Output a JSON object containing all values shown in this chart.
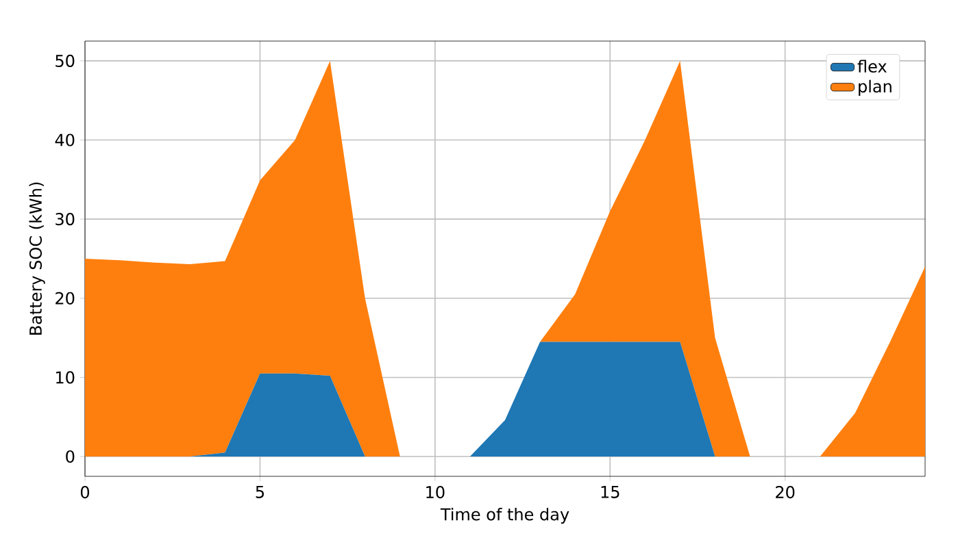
{
  "chart_data": {
    "type": "area",
    "stacked": true,
    "xlabel": "Time of the day",
    "ylabel": "Battery SOC (kWh)",
    "x": [
      0,
      1,
      2,
      3,
      4,
      5,
      6,
      7,
      8,
      9,
      10,
      11,
      12,
      13,
      14,
      15,
      16,
      17,
      18,
      19,
      20,
      21,
      22,
      23,
      24
    ],
    "series": [
      {
        "name": "flex",
        "color": "#1f77b4",
        "values": [
          0,
          0,
          0,
          0,
          0.5,
          10.5,
          10.5,
          10.2,
          0,
          0,
          0,
          0,
          4.6,
          14.5,
          14.5,
          14.5,
          14.5,
          14.5,
          0,
          0,
          0,
          0,
          0,
          0,
          0
        ]
      },
      {
        "name": "plan",
        "color": "#ff7f0e",
        "values": [
          25,
          24.8,
          24.5,
          24.3,
          24.2,
          24.4,
          29.5,
          39.8,
          20,
          0,
          0,
          0,
          0,
          0,
          6,
          16.5,
          25.5,
          35.5,
          15,
          0,
          0,
          0,
          5.5,
          14.5,
          24
        ]
      }
    ],
    "xlim": [
      0,
      24
    ],
    "ylim": [
      -2.5,
      52.5
    ],
    "xticks": [
      0,
      5,
      10,
      15,
      20
    ],
    "yticks": [
      0,
      10,
      20,
      30,
      40,
      50
    ],
    "grid": true,
    "legend": "top right"
  }
}
